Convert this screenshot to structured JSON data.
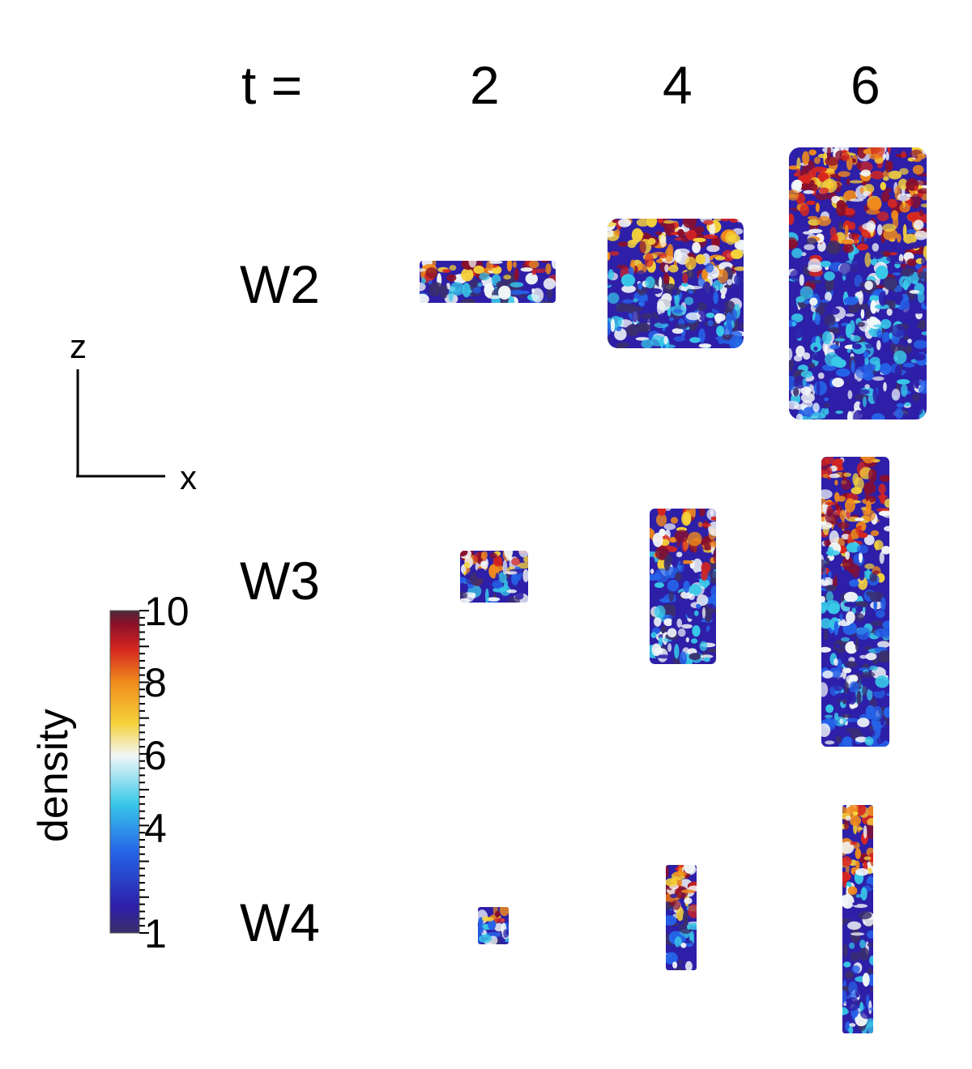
{
  "header": {
    "time_label": "t =",
    "times": [
      "2",
      "4",
      "6"
    ]
  },
  "rows": [
    "W2",
    "W3",
    "W4"
  ],
  "axes": {
    "vertical": "z",
    "horizontal": "x"
  },
  "colorbar": {
    "title": "density",
    "ticks": [
      "10",
      "8",
      "6",
      "4",
      "1"
    ],
    "tick_values": [
      10,
      8,
      6,
      4,
      1
    ],
    "range": [
      1,
      10
    ],
    "colors": [
      "#3b2f6b",
      "#2d1fa8",
      "#2563e8",
      "#38c8e8",
      "#f2f7f8",
      "#f5d23a",
      "#f08a1c",
      "#d7261f",
      "#8a0f2a",
      "#4a2a3a"
    ]
  }
}
